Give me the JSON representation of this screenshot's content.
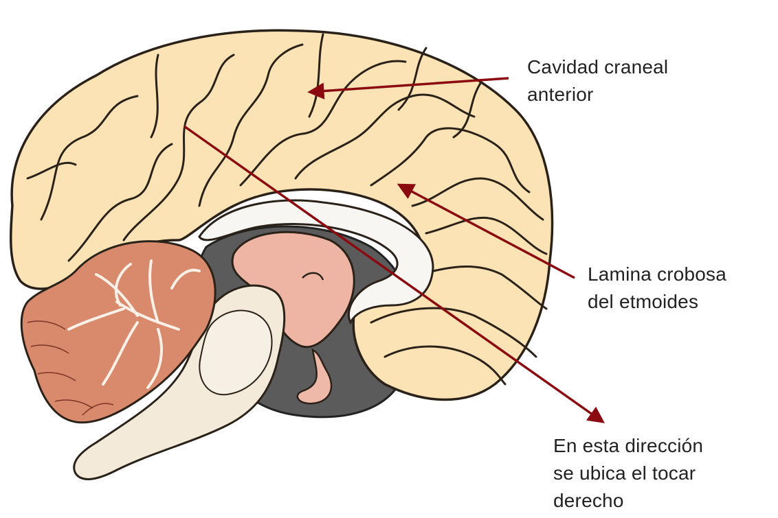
{
  "labels": [
    {
      "lines": [
        "Cavidad craneal",
        "anterior"
      ]
    },
    {
      "lines": [
        "Lamina crobosa",
        "del etmoides"
      ]
    },
    {
      "lines": [
        "En esta dirección",
        "se ubica el tocar",
        "derecho"
      ]
    }
  ],
  "colors": {
    "arrow": "#8b0a10",
    "cortex_fill": "#fbe3b5",
    "cortex_stroke": "#2a2118",
    "cerebellum_fill": "#d98a6c",
    "cerebellum_lines": "#fdf0e6",
    "brainstem_fill": "#f3ead9",
    "callosum_fill": "#f8f6f3",
    "thalamus_fill": "#eeb5a4",
    "pituitary_fill": "#eeb9a8",
    "ventricle_fill": "#5b5b5b"
  }
}
